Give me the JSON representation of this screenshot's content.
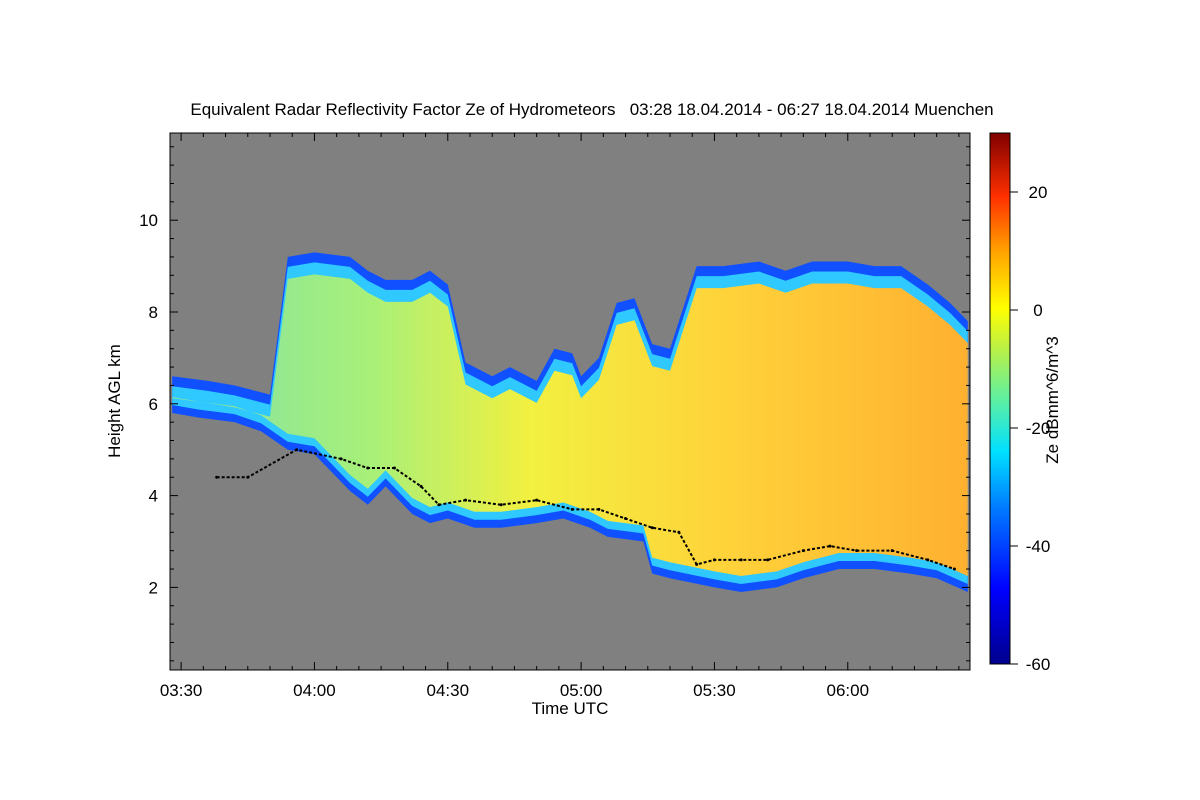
{
  "chart_data": {
    "type": "heatmap",
    "title": "Equivalent Radar Reflectivity Factor Ze of Hydrometeors   03:28 18.04.2014 - 06:27 18.04.2014 Muenchen",
    "xlabel": "Time UTC",
    "ylabel": "Height AGL km",
    "colorbar_label": "Ze dBmm^6/m^3",
    "x_start_min": 208,
    "x_end_min": 387,
    "xlim_min": [
      207.5,
      387.5
    ],
    "x_tick_values_min": [
      210,
      240,
      270,
      300,
      330,
      360
    ],
    "x_tick_labels": [
      "03:30",
      "04:00",
      "04:30",
      "05:00",
      "05:30",
      "06:00"
    ],
    "ylim": [
      0.2,
      11.9
    ],
    "y_ticks": [
      2,
      4,
      6,
      8,
      10
    ],
    "y_tick_labels": [
      "2",
      "4",
      "6",
      "8",
      "10"
    ],
    "clim": [
      -60,
      30
    ],
    "colorbar_ticks": [
      -60,
      -40,
      -20,
      0,
      20
    ],
    "colorbar_tick_labels": [
      "-60",
      "-40",
      "-20",
      "0",
      "20"
    ],
    "colors": {
      "background_nodata": "#808080",
      "cloud_base_marker": "#000000"
    },
    "cloud_top_km": [
      [
        208,
        6.6
      ],
      [
        216,
        6.5
      ],
      [
        222,
        6.4
      ],
      [
        230,
        6.2
      ],
      [
        234,
        9.2
      ],
      [
        240,
        9.3
      ],
      [
        248,
        9.2
      ],
      [
        252,
        8.9
      ],
      [
        256,
        8.7
      ],
      [
        262,
        8.7
      ],
      [
        266,
        8.9
      ],
      [
        270,
        8.6
      ],
      [
        274,
        6.9
      ],
      [
        280,
        6.6
      ],
      [
        284,
        6.8
      ],
      [
        290,
        6.5
      ],
      [
        294,
        7.2
      ],
      [
        298,
        7.1
      ],
      [
        300,
        6.6
      ],
      [
        304,
        7.0
      ],
      [
        308,
        8.2
      ],
      [
        312,
        8.3
      ],
      [
        316,
        7.3
      ],
      [
        320,
        7.2
      ],
      [
        326,
        9.0
      ],
      [
        332,
        9.0
      ],
      [
        340,
        9.1
      ],
      [
        346,
        8.9
      ],
      [
        352,
        9.1
      ],
      [
        360,
        9.1
      ],
      [
        366,
        9.0
      ],
      [
        372,
        9.0
      ],
      [
        378,
        8.6
      ],
      [
        383,
        8.2
      ],
      [
        387,
        7.8
      ]
    ],
    "cloud_bottom_km": [
      [
        208,
        5.8
      ],
      [
        214,
        5.7
      ],
      [
        222,
        5.6
      ],
      [
        228,
        5.4
      ],
      [
        234,
        5.0
      ],
      [
        240,
        4.9
      ],
      [
        244,
        4.5
      ],
      [
        248,
        4.1
      ],
      [
        252,
        3.8
      ],
      [
        256,
        4.2
      ],
      [
        262,
        3.6
      ],
      [
        266,
        3.4
      ],
      [
        270,
        3.5
      ],
      [
        276,
        3.3
      ],
      [
        282,
        3.3
      ],
      [
        290,
        3.4
      ],
      [
        296,
        3.5
      ],
      [
        302,
        3.3
      ],
      [
        306,
        3.1
      ],
      [
        314,
        3.0
      ],
      [
        316,
        2.3
      ],
      [
        320,
        2.2
      ],
      [
        330,
        2.0
      ],
      [
        336,
        1.9
      ],
      [
        344,
        2.0
      ],
      [
        350,
        2.2
      ],
      [
        358,
        2.4
      ],
      [
        366,
        2.4
      ],
      [
        374,
        2.3
      ],
      [
        380,
        2.2
      ],
      [
        387,
        1.9
      ]
    ],
    "cloud_base_detected_km": [
      [
        218,
        4.4
      ],
      [
        225,
        4.4
      ],
      [
        236,
        5.0
      ],
      [
        246,
        4.8
      ],
      [
        252,
        4.6
      ],
      [
        258,
        4.6
      ],
      [
        264,
        4.2
      ],
      [
        268,
        3.8
      ],
      [
        274,
        3.9
      ],
      [
        282,
        3.8
      ],
      [
        290,
        3.9
      ],
      [
        298,
        3.7
      ],
      [
        304,
        3.7
      ],
      [
        310,
        3.5
      ],
      [
        316,
        3.3
      ],
      [
        322,
        3.2
      ],
      [
        326,
        2.5
      ],
      [
        330,
        2.6
      ],
      [
        336,
        2.6
      ],
      [
        342,
        2.6
      ],
      [
        350,
        2.8
      ],
      [
        356,
        2.9
      ],
      [
        362,
        2.8
      ],
      [
        370,
        2.8
      ],
      [
        378,
        2.6
      ],
      [
        384,
        2.4
      ]
    ],
    "reflectivity_profile_dbz": [
      {
        "time_min": 215,
        "max_ze": -20
      },
      {
        "time_min": 240,
        "max_ze": -18
      },
      {
        "time_min": 265,
        "max_ze": -10
      },
      {
        "time_min": 285,
        "max_ze": -5
      },
      {
        "time_min": 310,
        "max_ze": -6
      },
      {
        "time_min": 335,
        "max_ze": 2
      },
      {
        "time_min": 360,
        "max_ze": 6
      },
      {
        "time_min": 385,
        "max_ze": 10
      }
    ]
  }
}
